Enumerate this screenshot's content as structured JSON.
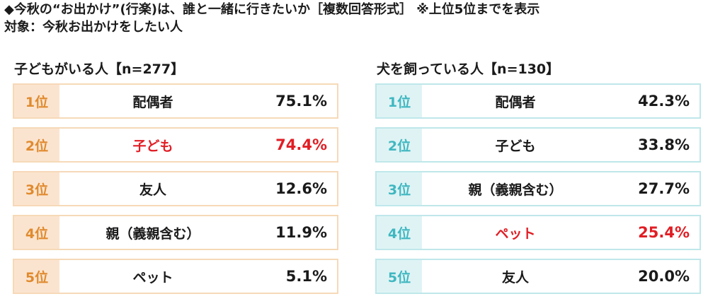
{
  "title": "◆今秋の“お出かけ”(行楽)は、誰と一緒に行きたいか［複数回答形式］ ※上位5位までを表示",
  "subtitle": "対象：今秋お出かけをしたい人",
  "colors": {
    "left_border": "#f6d9b8",
    "left_rank_bg": "#fbe4cf",
    "left_rank_text": "#e08a2e",
    "right_border": "#bfe7ea",
    "right_rank_bg": "#dff3f5",
    "right_rank_text": "#3fb7c0",
    "highlight_text": "#e11d24",
    "default_text": "#1a1a1a"
  },
  "chart_data": [
    {
      "type": "table",
      "title": "子どもがいる人【n=277】",
      "rows": [
        {
          "rank": "1位",
          "label": "配偶者",
          "value": "75.1%",
          "highlight": false
        },
        {
          "rank": "2位",
          "label": "子ども",
          "value": "74.4%",
          "highlight": true
        },
        {
          "rank": "3位",
          "label": "友人",
          "value": "12.6%",
          "highlight": false
        },
        {
          "rank": "4位",
          "label": "親（義親含む）",
          "value": "11.9%",
          "highlight": false
        },
        {
          "rank": "5位",
          "label": "ペット",
          "value": "5.1%",
          "highlight": false
        }
      ]
    },
    {
      "type": "table",
      "title": "犬を飼っている人【n=130】",
      "rows": [
        {
          "rank": "1位",
          "label": "配偶者",
          "value": "42.3%",
          "highlight": false
        },
        {
          "rank": "2位",
          "label": "子ども",
          "value": "33.8%",
          "highlight": false
        },
        {
          "rank": "3位",
          "label": "親（義親含む）",
          "value": "27.7%",
          "highlight": false
        },
        {
          "rank": "4位",
          "label": "ペット",
          "value": "25.4%",
          "highlight": true
        },
        {
          "rank": "5位",
          "label": "友人",
          "value": "20.0%",
          "highlight": false
        }
      ]
    }
  ]
}
